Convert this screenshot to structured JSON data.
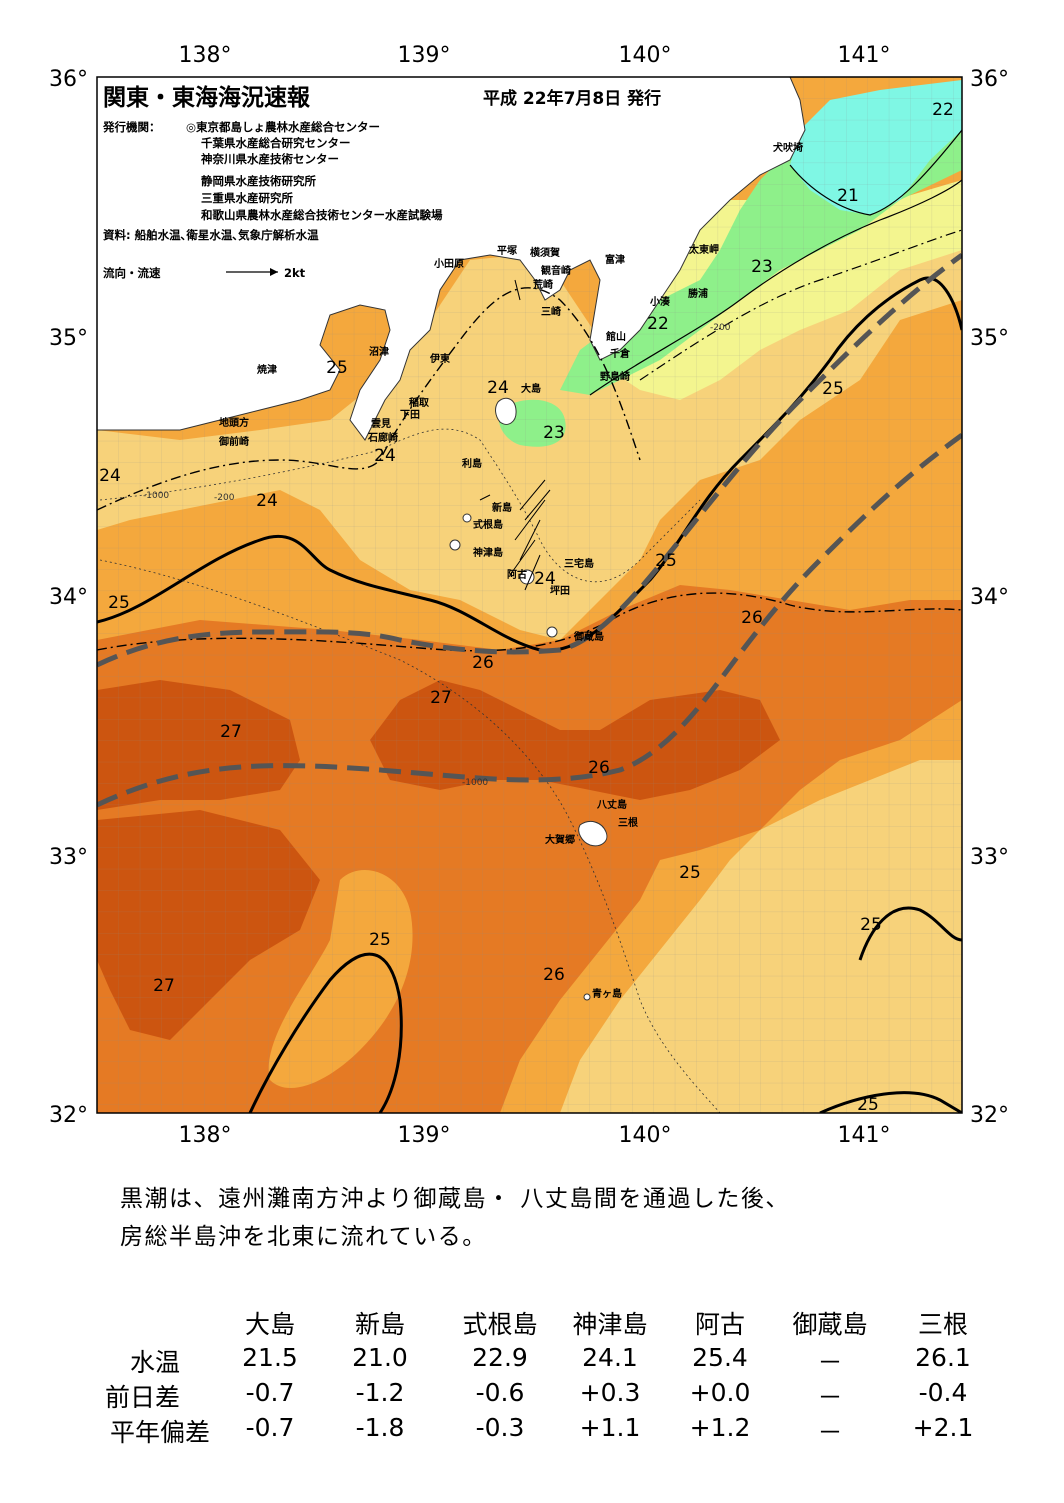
{
  "title": "関東・東海海況速報",
  "date": "平成 22年7月8日 発行",
  "agency": {
    "label": "発行機関：",
    "lines": [
      "◎東京都島しょ農林水産総合センター",
      "千葉県水産総合研究センター",
      "神奈川県水産技術センター",
      "静岡県水産技術研究所",
      "三重県水産研究所",
      "和歌山県農林水産総合技術センター水産試験場"
    ]
  },
  "source": "資料: 船舶水温､衛星水温､気象庁解析水温",
  "legend": {
    "label": "流向・流速",
    "scale": "2kt"
  },
  "axes": {
    "lon": [
      "138°",
      "139°",
      "140°",
      "141°"
    ],
    "lat": [
      "36°",
      "35°",
      "34°",
      "33°",
      "32°"
    ]
  },
  "places": [
    "犬吠埼",
    "太東岬",
    "勝浦",
    "小湊",
    "館山",
    "千倉",
    "野島崎",
    "富津",
    "横須賀",
    "観音崎",
    "荒崎",
    "三崎",
    "平塚",
    "小田原",
    "大島",
    "沼津",
    "伊東",
    "稲取",
    "下田",
    "雲見",
    "石廊崎",
    "焼津",
    "地頭方",
    "御前崎",
    "利島",
    "新島",
    "式根島",
    "神津島",
    "三宅島",
    "阿古",
    "坪田",
    "御蔵島",
    "八丈島",
    "三根",
    "大賀郷",
    "青ヶ島"
  ],
  "isotherm_labels": [
    "22",
    "21",
    "23",
    "22",
    "25",
    "24",
    "23",
    "24",
    "24",
    "24",
    "25",
    "25",
    "26",
    "26",
    "27",
    "27",
    "26",
    "25",
    "25",
    "25",
    "27",
    "26",
    "25"
  ],
  "depth_labels": [
    "-200",
    "-1000"
  ],
  "colors": {
    "t21": "#7ff7e4",
    "t22": "#8ef08a",
    "t23": "#f3f58f",
    "t24": "#f7d27a",
    "t25": "#f4a83d",
    "t26": "#e57a24",
    "t27": "#cc5510",
    "land": "#ffffff",
    "kuroshio_axis": "#555555"
  },
  "comment": [
    "黒潮は、遠州灘南方沖より御蔵島・ 八丈島間を通過した後、",
    "房総半島沖を北東に流れている。"
  ],
  "table": {
    "columns": [
      "大島",
      "新島",
      "式根島",
      "神津島",
      "阿古",
      "御蔵島",
      "三根"
    ],
    "rows": [
      {
        "label": "水温",
        "values": [
          "21.5",
          "21.0",
          "22.9",
          "24.1",
          "25.4",
          "－",
          "26.1"
        ]
      },
      {
        "label": "前日差",
        "values": [
          "-0.7",
          "-1.2",
          "-0.6",
          "+0.3",
          "+0.0",
          "－",
          "-0.4"
        ]
      },
      {
        "label": "平年偏差",
        "values": [
          "-0.7",
          "-1.8",
          "-0.3",
          "+1.1",
          "+1.2",
          "－",
          "+2.1"
        ]
      }
    ]
  }
}
